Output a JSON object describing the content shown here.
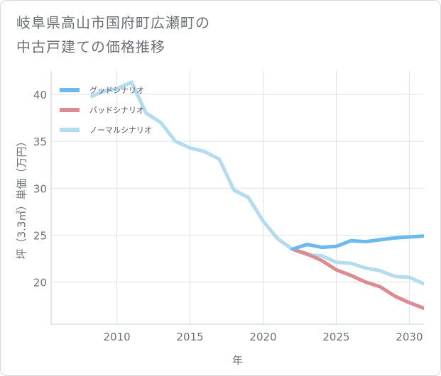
{
  "title": {
    "line1": "岐阜県高山市国府町広瀬町の",
    "line2": "中古戸建ての価格推移"
  },
  "chart_data": {
    "type": "line",
    "title": "岐阜県高山市国府町広瀬町の中古戸建ての価格推移",
    "xlabel": "年",
    "ylabel": "坪（3.3㎡）単価（万円）",
    "xlim": [
      2005.5,
      2031
    ],
    "ylim": [
      15.5,
      42.5
    ],
    "x_ticks": [
      2010,
      2015,
      2020,
      2025,
      2030
    ],
    "y_ticks": [
      20,
      25,
      30,
      35,
      40
    ],
    "grid": true,
    "legend_position": "top-left",
    "series": [
      {
        "name": "グッドシナリオ",
        "color": "#6cb8f0",
        "x": [
          2022,
          2023,
          2024,
          2025,
          2026,
          2027,
          2028,
          2029,
          2030,
          2031
        ],
        "y": [
          23.5,
          24.0,
          23.7,
          23.8,
          24.4,
          24.3,
          24.5,
          24.7,
          24.8,
          24.9
        ]
      },
      {
        "name": "バッドシナリオ",
        "color": "#dd8a90",
        "x": [
          2022,
          2023,
          2024,
          2025,
          2026,
          2027,
          2028,
          2029,
          2030,
          2031
        ],
        "y": [
          23.5,
          23.0,
          22.3,
          21.3,
          20.7,
          20.0,
          19.5,
          18.5,
          17.8,
          17.2
        ]
      },
      {
        "name": "ノーマルシナリオ",
        "color": "#b3dcee",
        "x": [
          2008.3,
          2009,
          2010,
          2011,
          2012,
          2013,
          2014,
          2015,
          2016,
          2017,
          2018,
          2019,
          2020,
          2021,
          2022,
          2023,
          2024,
          2025,
          2026,
          2027,
          2028,
          2029,
          2030,
          2031
        ],
        "y": [
          39.8,
          40.3,
          40.6,
          41.3,
          38.0,
          37.0,
          35.0,
          34.3,
          33.9,
          33.1,
          29.8,
          29.0,
          26.5,
          24.6,
          23.5,
          22.9,
          22.8,
          22.1,
          22.0,
          21.5,
          21.2,
          20.6,
          20.5,
          19.8
        ]
      }
    ]
  }
}
